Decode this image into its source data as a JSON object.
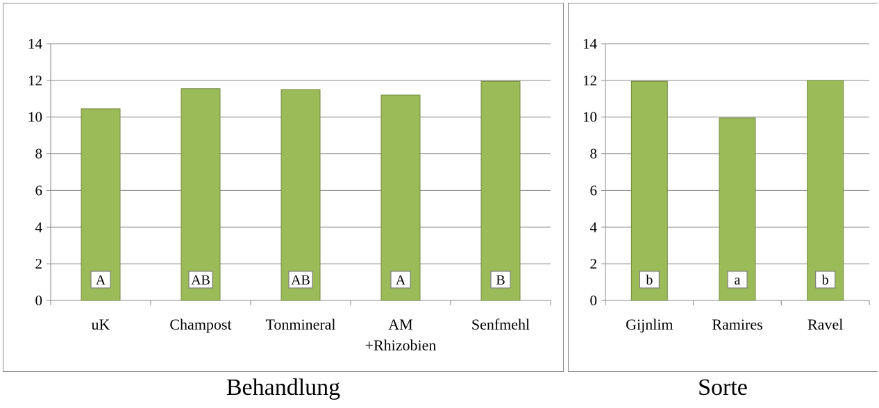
{
  "chart_data": [
    {
      "type": "bar",
      "categories": [
        "uK",
        "Champost",
        "Tonmineral",
        "AM +Rhizobien",
        "Senfmehl"
      ],
      "category_lines": [
        [
          "uK"
        ],
        [
          "Champost"
        ],
        [
          "Tonmineral"
        ],
        [
          "AM",
          "+Rhizobien"
        ],
        [
          "Senfmehl"
        ]
      ],
      "values": [
        10.45,
        11.55,
        11.5,
        11.2,
        11.95
      ],
      "annotations": [
        "A",
        "AB",
        "AB",
        "A",
        "B"
      ],
      "title": "Behandlung",
      "ylim": [
        0,
        14
      ],
      "yticks": [
        0,
        2,
        4,
        6,
        8,
        10,
        12,
        14
      ],
      "grid": true,
      "color": "#9bbb59",
      "edge_color": "#71893f"
    },
    {
      "type": "bar",
      "categories": [
        "Gijnlim",
        "Ramires",
        "Ravel"
      ],
      "category_lines": [
        [
          "Gijnlim"
        ],
        [
          "Ramires"
        ],
        [
          "Ravel"
        ]
      ],
      "values": [
        11.95,
        9.95,
        12.0
      ],
      "annotations": [
        "b",
        "a",
        "b"
      ],
      "title": "Sorte",
      "ylim": [
        0,
        14
      ],
      "yticks": [
        0,
        2,
        4,
        6,
        8,
        10,
        12,
        14
      ],
      "grid": true,
      "color": "#9bbb59",
      "edge_color": "#71893f"
    }
  ]
}
